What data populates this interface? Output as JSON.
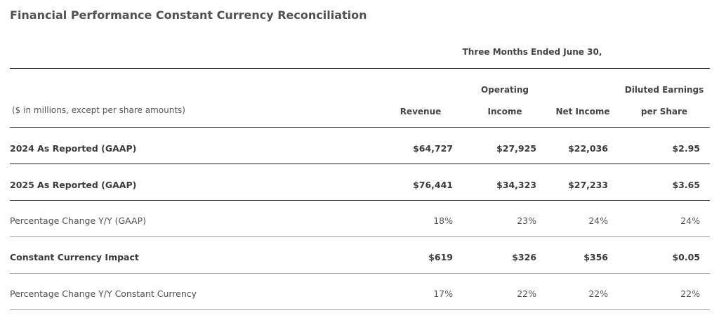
{
  "title": "Financial Performance Constant Currency Reconciliation",
  "period_header": "Three Months Ended June 30,",
  "unit_note": "($ in millions, except per share amounts)",
  "columns": {
    "revenue": "Revenue",
    "operating_income_line1": "Operating",
    "operating_income_line2": "Income",
    "net_income": "Net Income",
    "eps_line1": "Diluted Earnings",
    "eps_line2": "per Share"
  },
  "rows": [
    {
      "label": "2024 As Reported (GAAP)",
      "revenue": "$64,727",
      "operating_income": "$27,925",
      "net_income": "$22,036",
      "eps": "$2.95"
    },
    {
      "label": "2025 As Reported (GAAP)",
      "revenue": "$76,441",
      "operating_income": "$34,323",
      "net_income": "$27,233",
      "eps": "$3.65"
    },
    {
      "label": "Percentage Change Y/Y (GAAP)",
      "revenue": "18%",
      "operating_income": "23%",
      "net_income": "24%",
      "eps": "24%"
    },
    {
      "label": "Constant Currency Impact",
      "revenue": "$619",
      "operating_income": "$326",
      "net_income": "$356",
      "eps": "$0.05"
    },
    {
      "label": "Percentage Change Y/Y Constant Currency",
      "revenue": "17%",
      "operating_income": "22%",
      "net_income": "22%",
      "eps": "22%"
    }
  ]
}
